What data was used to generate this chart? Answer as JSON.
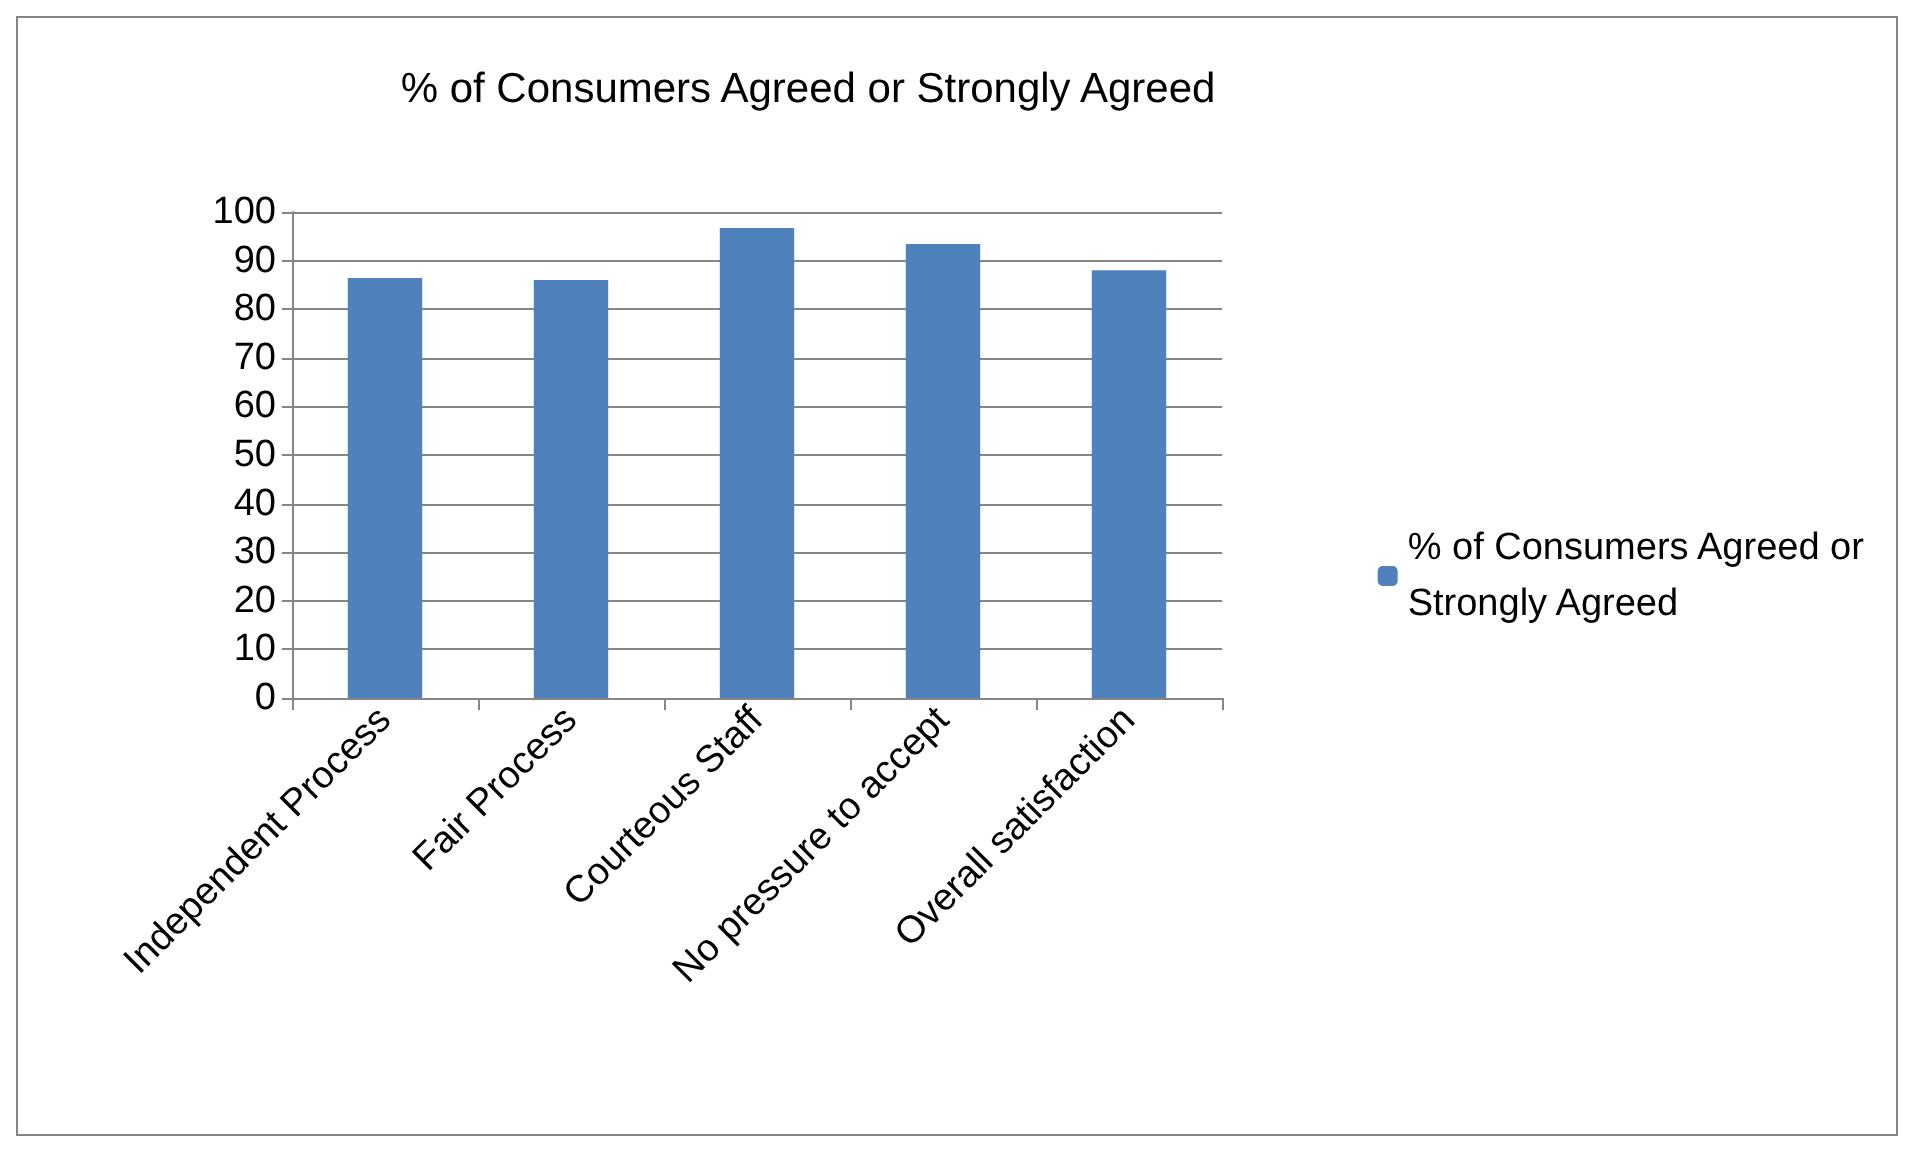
{
  "chart_data": {
    "type": "bar",
    "title": "% of Consumers Agreed or Strongly Agreed",
    "categories": [
      "Independent Process",
      "Fair Process",
      "Courteous Staff",
      "No pressure to accept",
      "Overall satisfaction"
    ],
    "series": [
      {
        "name": "% of Consumers Agreed or Strongly Agreed",
        "color": "#4f81bd",
        "values": [
          86.4,
          86,
          96.7,
          93.4,
          88
        ]
      }
    ],
    "ylim": [
      0,
      100
    ],
    "yticks": [
      0,
      10,
      20,
      30,
      40,
      50,
      60,
      70,
      80,
      90,
      100
    ],
    "grid": "y",
    "legend": "right"
  }
}
